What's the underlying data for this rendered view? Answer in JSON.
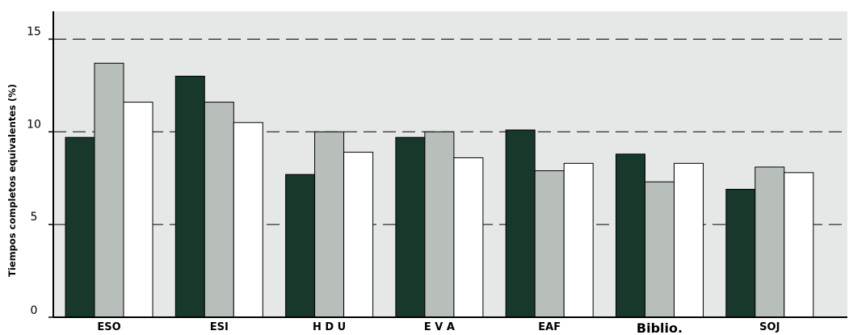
{
  "chart_data": {
    "type": "bar",
    "title": "",
    "xlabel": "",
    "ylabel": "Tiempos completos equivalentes (%)",
    "categories": [
      "ESO",
      "ESI",
      "HDU",
      "EVA",
      "EAF",
      "Biblio.",
      "SOJ"
    ],
    "display_categories": [
      "ESO",
      "ESI",
      "H D U",
      "E V A",
      "EAF",
      "Biblio.",
      "SOJ"
    ],
    "yticks": [
      0,
      5,
      10,
      15
    ],
    "ytick_labels": [
      "0",
      "5",
      "10",
      "15"
    ],
    "ylim": [
      0,
      16.5
    ],
    "gridlines": [
      5,
      10,
      15
    ],
    "grid": "horizontal-dashed",
    "legend": "none",
    "series": [
      {
        "values": [
          9.7,
          13,
          7.7,
          9.7,
          10.1,
          8.8,
          6.9
        ],
        "color": "#17382a"
      },
      {
        "values": [
          13.7,
          11.6,
          10,
          10,
          7.9,
          7.3,
          8.1
        ],
        "color": "#b8bfbb"
      },
      {
        "values": [
          11.6,
          10.5,
          8.9,
          8.6,
          8.3,
          8.3,
          7.8
        ],
        "color": "#ffffff"
      }
    ],
    "plot_background": "#e6e8e7",
    "bar_outline": "#000000"
  }
}
